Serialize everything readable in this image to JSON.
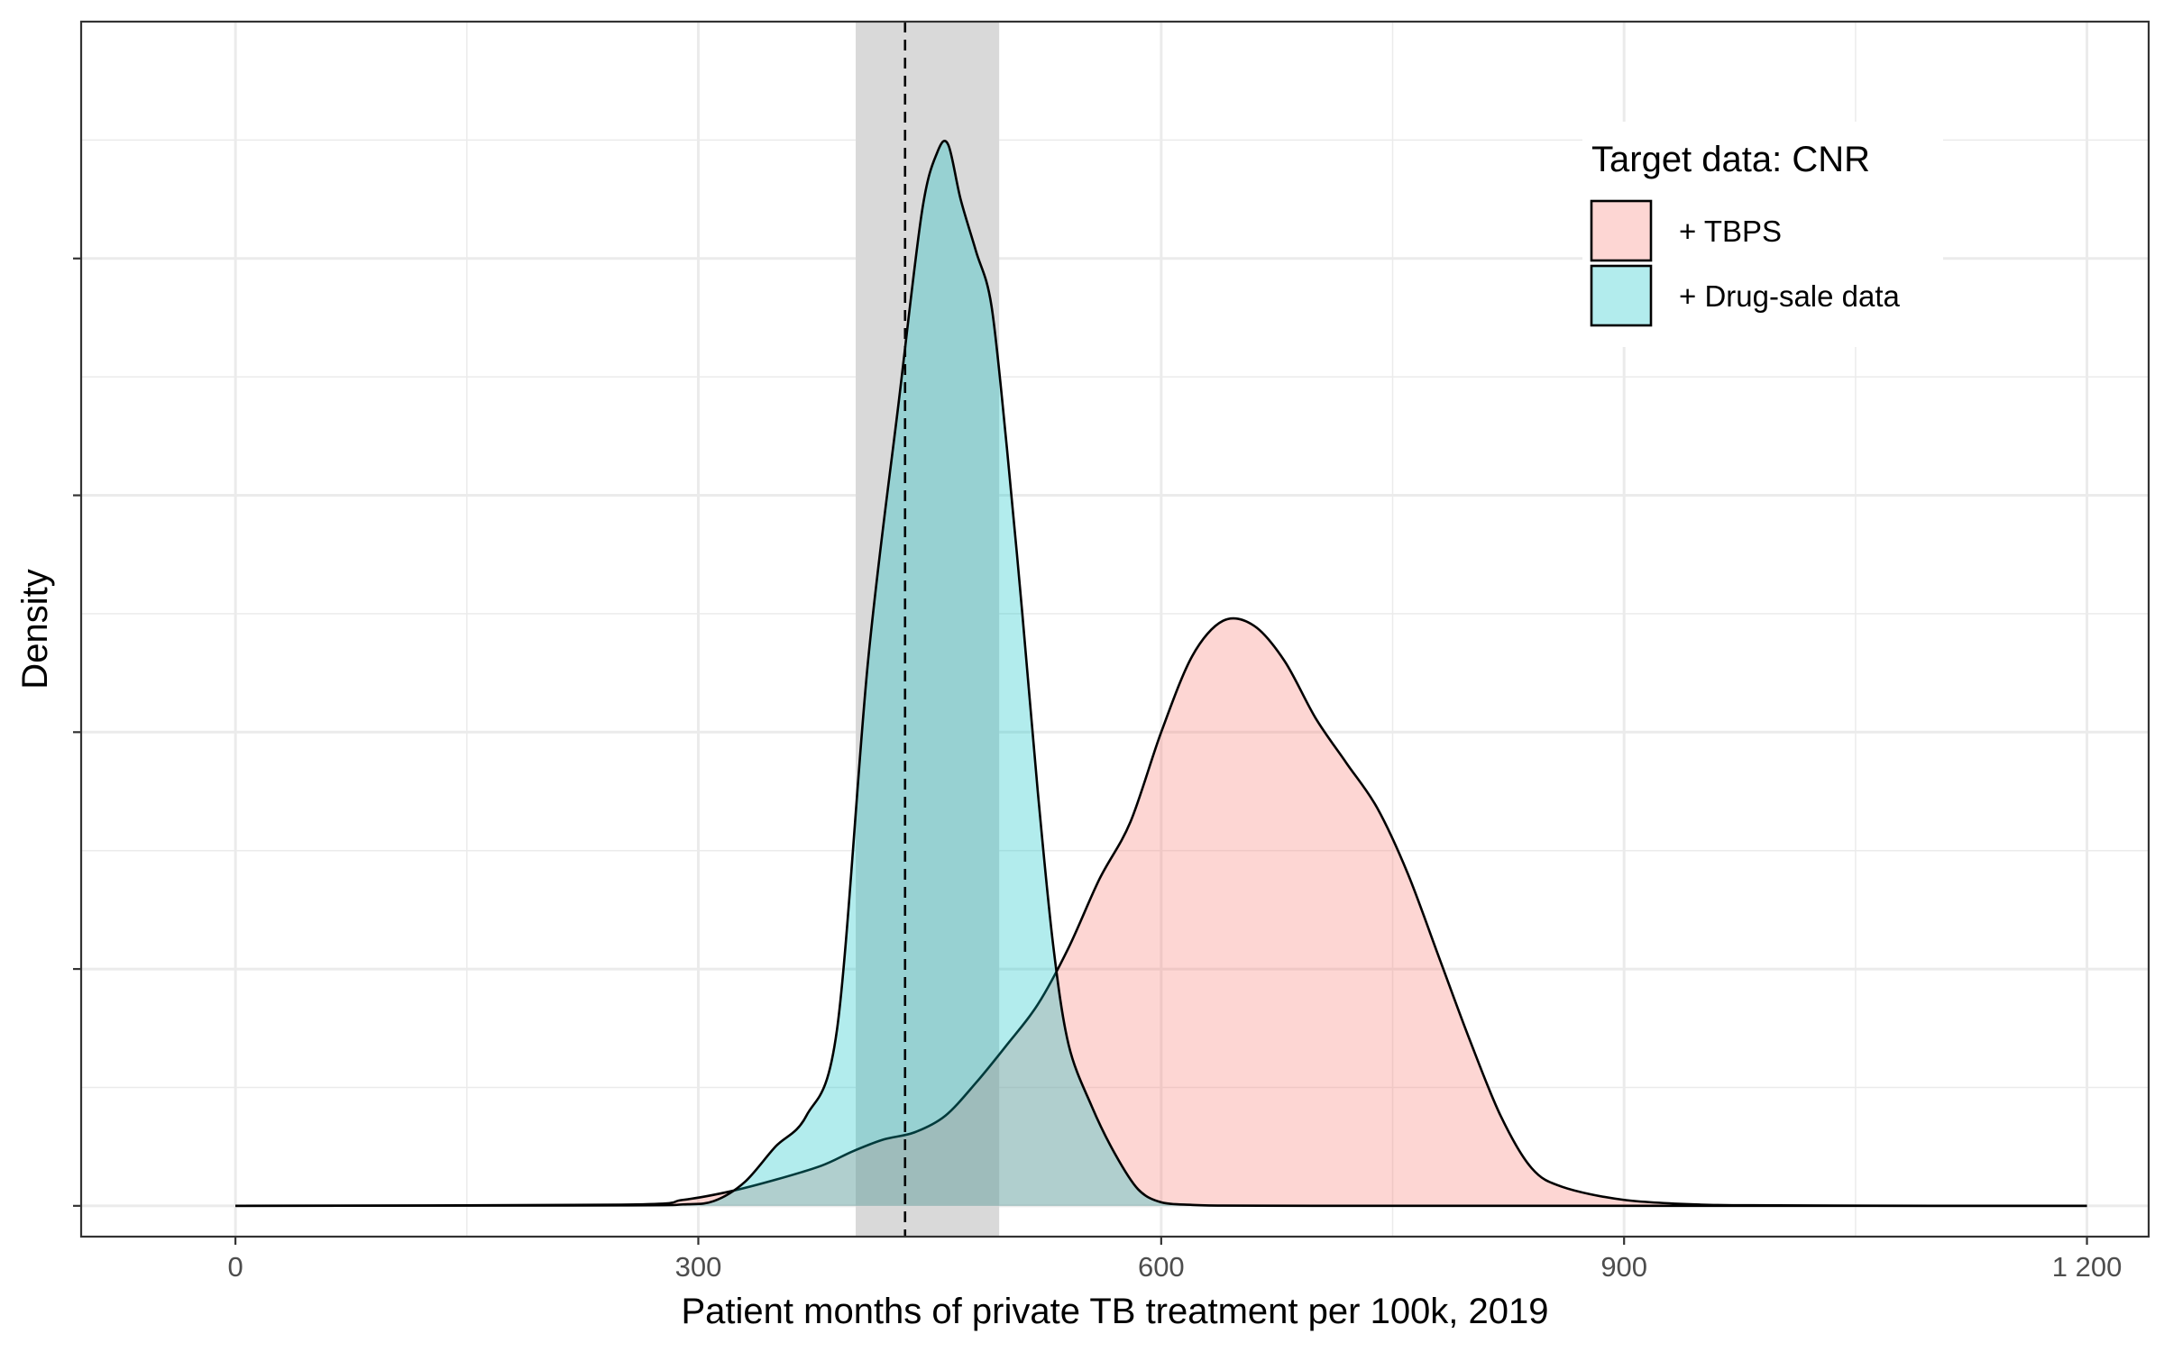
{
  "chart_data": {
    "type": "area",
    "xlabel": "Patient months of private TB treatment per 100k, 2019",
    "ylabel": "Density",
    "xlim": [
      -100,
      1240
    ],
    "ylim": [
      -0.00013,
      0.005
    ],
    "x_ticks": [
      0,
      300,
      600,
      900,
      1200
    ],
    "x_tick_labels": [
      "0",
      "300",
      "600",
      "900",
      "1 200"
    ],
    "y_ticks": [
      0,
      0.001,
      0.002,
      0.003,
      0.004
    ],
    "y_tick_labels_shown": false,
    "grid": true,
    "legend": {
      "title": "Target data: CNR",
      "placement": "top-right",
      "entries": [
        {
          "label": "+ TBPS",
          "color": "#F8766D"
        },
        {
          "label": "+ Drug-sale data",
          "color": "#00BFC4"
        }
      ]
    },
    "reference_line": {
      "x": 434,
      "style": "dashed"
    },
    "reference_band": {
      "x_min": 402,
      "x_max": 495,
      "color": "#d9d9d9"
    },
    "series": [
      {
        "name": "+ TBPS",
        "fill": "#F8766D",
        "fill_opacity": 0.3,
        "x": [
          0,
          250,
          290,
          320,
          350,
          380,
          400,
          420,
          440,
          460,
          480,
          500,
          520,
          540,
          560,
          580,
          600,
          620,
          640,
          660,
          680,
          700,
          720,
          740,
          760,
          780,
          800,
          820,
          840,
          860,
          900,
          950,
          1000,
          1100,
          1200
        ],
        "y": [
          0,
          5e-06,
          2.5e-05,
          6e-05,
          0.00011,
          0.00017,
          0.00023,
          0.00028,
          0.00031,
          0.00038,
          0.00052,
          0.00068,
          0.00085,
          0.00109,
          0.00138,
          0.00162,
          0.002,
          0.00232,
          0.00247,
          0.00245,
          0.0023,
          0.00206,
          0.00187,
          0.00168,
          0.0014,
          0.00105,
          0.0007,
          0.00038,
          0.00016,
          8e-05,
          2.5e-05,
          5e-06,
          2e-06,
          0,
          0
        ]
      },
      {
        "name": "+ Drug-sale data",
        "fill": "#00BFC4",
        "fill_opacity": 0.3,
        "x": [
          0,
          250,
          290,
          310,
          330,
          350,
          370,
          390,
          410,
          430,
          445,
          455,
          462,
          470,
          480,
          490,
          500,
          510,
          520,
          530,
          540,
          555,
          570,
          585,
          600,
          620,
          640,
          700,
          800,
          1200
        ],
        "y": [
          0,
          2e-06,
          6e-06,
          2e-05,
          0.0001,
          0.00025,
          0.00038,
          0.00075,
          0.0023,
          0.0034,
          0.0042,
          0.00445,
          0.00448,
          0.00425,
          0.00403,
          0.0038,
          0.0032,
          0.0025,
          0.00175,
          0.0011,
          0.00068,
          0.00042,
          0.00022,
          7e-05,
          1.5e-05,
          4e-06,
          1e-06,
          0,
          0,
          0
        ]
      }
    ]
  }
}
